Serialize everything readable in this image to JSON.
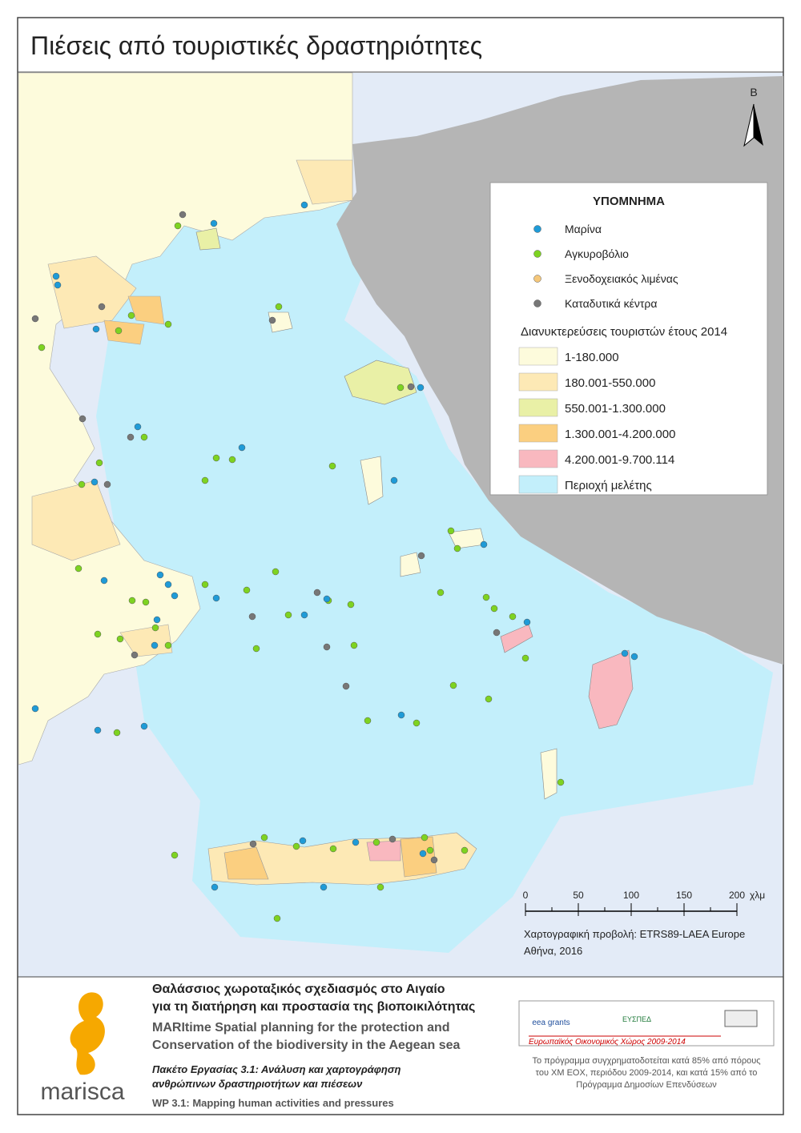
{
  "header": {
    "title": "Πιέσεις από τουριστικές δραστηριότητες"
  },
  "north_arrow": "Β",
  "legend": {
    "title": "ΥΠΟΜΝΗΜΑ",
    "points": [
      {
        "label": "Μαρίνα",
        "color": "#1f9bd7"
      },
      {
        "label": "Αγκυροβόλιο",
        "color": "#7ed321"
      },
      {
        "label": "Ξενοδοχειακός λιμένας",
        "color": "#f5c77a"
      },
      {
        "label": "Καταδυτικά κέντρα",
        "color": "#777777"
      }
    ],
    "classes_title": "Διανυκτερεύσεις τουριστών έτους 2014",
    "classes": [
      {
        "label": "1-180.000",
        "color": "#fdfbdc"
      },
      {
        "label": "180.001-550.000",
        "color": "#fde9b5"
      },
      {
        "label": "550.001-1.300.000",
        "color": "#e9f0a6"
      },
      {
        "label": "1.300.001-4.200.000",
        "color": "#fbcf80"
      },
      {
        "label": "4.200.001-9.700.114",
        "color": "#f9b8bf"
      },
      {
        "label": "Περιοχή μελέτης",
        "color": "#c3effb"
      }
    ]
  },
  "scale_bar": {
    "ticks": [
      0,
      50,
      100,
      150,
      200
    ],
    "unit": "χλμ"
  },
  "projection": "Χαρτογραφική προβολή: ETRS89-LAEA Europe",
  "place_date": "Αθήνα, 2016",
  "footer": {
    "logo": "marisca",
    "title_el": [
      "Θαλάσσιος χωροταξικός σχεδιασμός στο Αιγαίο",
      "για τη διατήρηση και προστασία της βιοποικιλότητας"
    ],
    "title_en": [
      "MARItime Spatial planning for the protection and",
      "Conservation of the biodiversity in the Aegean sea"
    ],
    "wp_el": [
      "Πακέτο Εργασίας 3.1: Ανάλυση και χαρτογράφηση",
      "ανθρώπινων δραστηριοτήτων και πιέσεων"
    ],
    "wp_en": "WP 3.1: Mapping human activities and pressures",
    "sponsors": {
      "eea": "eea grants",
      "eyspd": "ΕΥΣΠΕΔ",
      "banner": "Ευρωπαϊκός Οικονομικός Χώρος 2009-2014"
    },
    "funding": [
      "Το πρόγραμμα συγχρηματοδοτείται κατά 85% από πόρους",
      "του ΧΜ ΕΟΧ, περιόδου 2009-2014, και κατά 15% από το",
      "Πρόγραμμα Δημοσίων Επενδύσεων"
    ]
  }
}
